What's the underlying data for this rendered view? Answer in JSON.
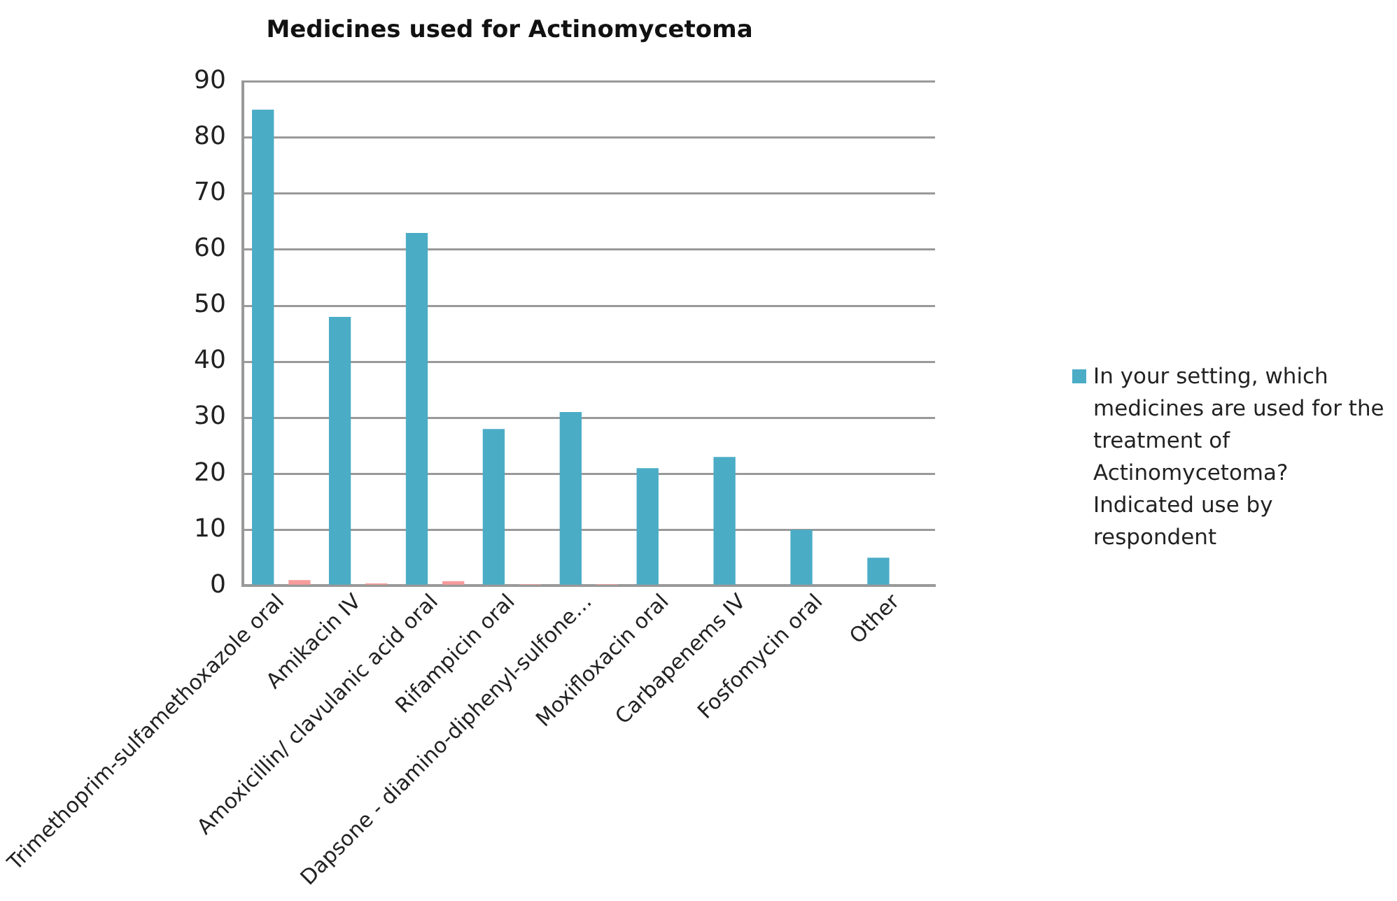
{
  "chart_data": {
    "type": "bar",
    "title": "Medicines used for Actinomycetoma",
    "categories": [
      "Trimethoprim-sulfamethoxazole oral",
      "Amikacin IV",
      "Amoxicillin/ clavulanic acid oral",
      "Rifampicin oral",
      "Dapsone - diamino-diphenyl-sulfone…",
      "Moxifloxacin oral",
      "Carbapenems IV",
      "Fosfomycin oral",
      "Other"
    ],
    "series": [
      {
        "name": "In your setting, which medicines are used for the treatment of Actinomycetoma? Indicated use by respondent",
        "color": "#4bacc6",
        "values": [
          85,
          48,
          63,
          28,
          31,
          21,
          23,
          10,
          5
        ]
      },
      {
        "color": "#f79b9b",
        "values": [
          1,
          0.4,
          0.8,
          0.3,
          0.3,
          0,
          0,
          0,
          0
        ]
      }
    ],
    "ylim": [
      0,
      90
    ],
    "yticks": [
      0,
      10,
      20,
      30,
      40,
      50,
      60,
      70,
      80,
      90
    ],
    "grid": "y",
    "legend": "right"
  }
}
